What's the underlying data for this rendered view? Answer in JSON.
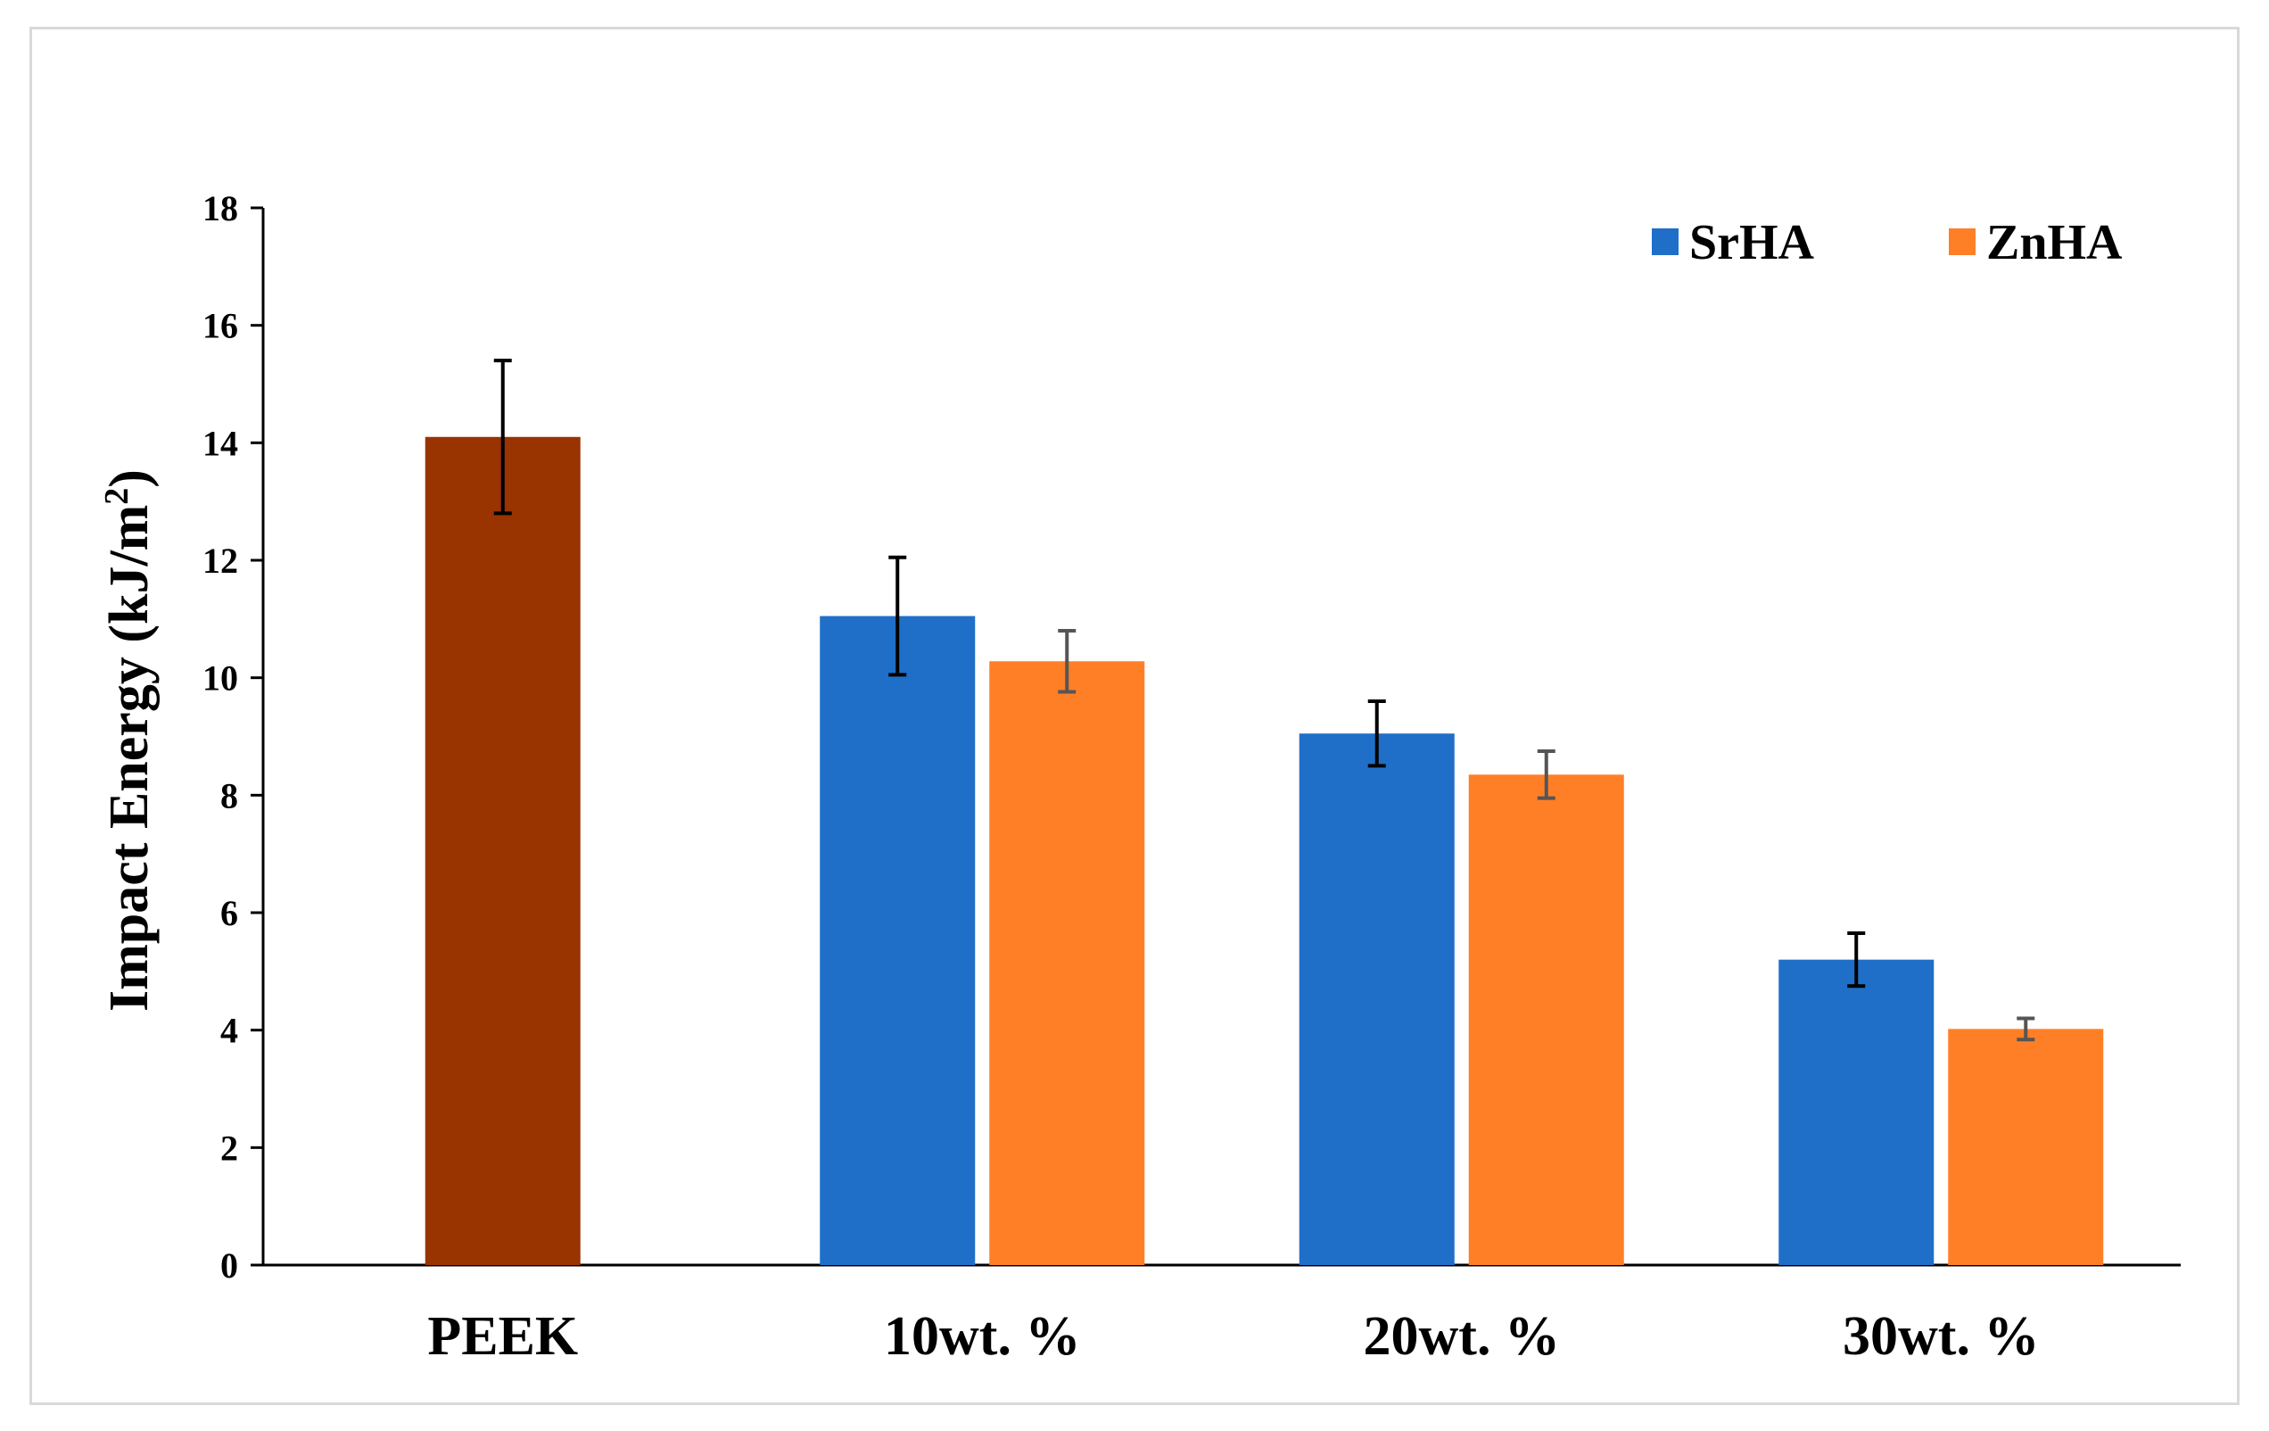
{
  "chart_data": {
    "type": "bar",
    "title": "",
    "xlabel": "",
    "ylabel": "Impact Energy (kJ/m",
    "ylabel_superscript": "2",
    "ylabel_suffix": ")",
    "ylim": [
      0,
      18
    ],
    "yticks": [
      "0",
      "2",
      "4",
      "6",
      "8",
      "10",
      "12",
      "14",
      "16",
      "18"
    ],
    "categories": [
      "PEEK",
      "10wt. %",
      "20wt. %",
      "30wt. %"
    ],
    "grid": false,
    "legend_position": "top-right",
    "series": [
      {
        "name": "PEEK",
        "color": "#993300",
        "show_in_legend": false,
        "values": [
          14.1,
          null,
          null,
          null
        ],
        "errors": [
          1.3,
          null,
          null,
          null
        ]
      },
      {
        "name": "SrHA",
        "color": "#1f6fc8",
        "show_in_legend": true,
        "values": [
          null,
          11.05,
          9.05,
          5.2
        ],
        "errors": [
          null,
          1.0,
          0.55,
          0.45
        ]
      },
      {
        "name": "ZnHA",
        "color": "#ff7f27",
        "show_in_legend": true,
        "values": [
          null,
          10.28,
          8.35,
          4.02
        ],
        "errors": [
          null,
          0.52,
          0.4,
          0.18
        ]
      }
    ]
  }
}
